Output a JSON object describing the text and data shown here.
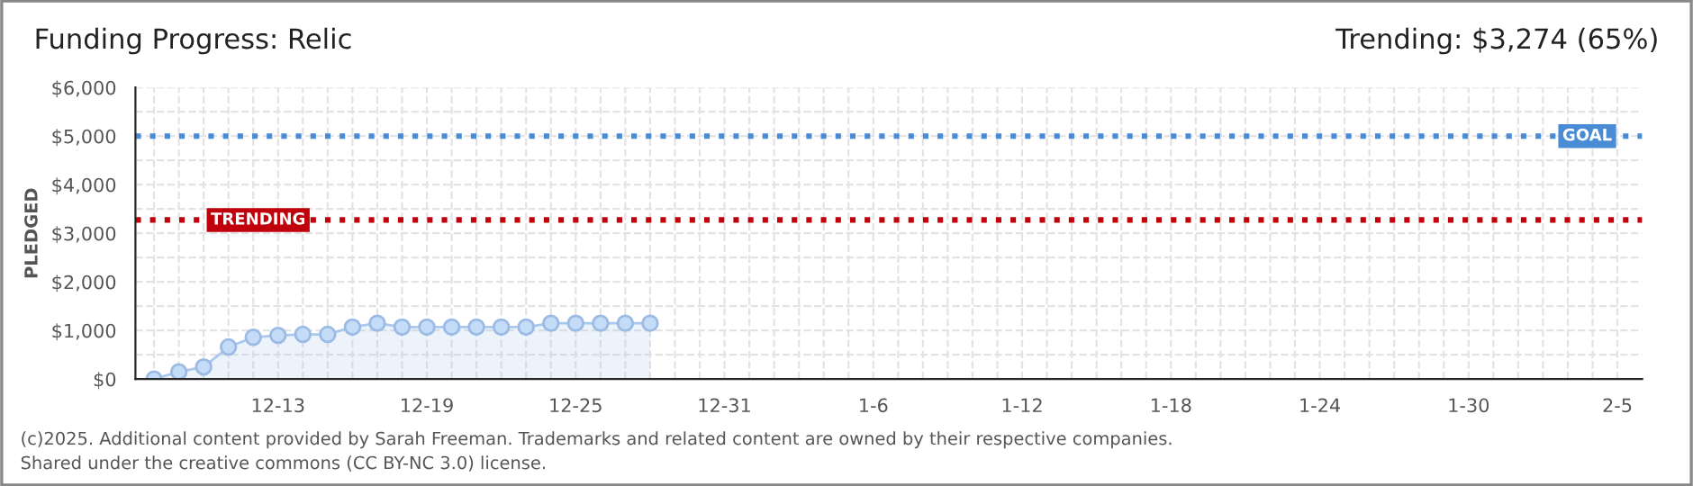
{
  "chart_data": {
    "type": "area",
    "title": "Funding Progress: Relic",
    "subtitle": "Trending: $3,274 (65%)",
    "ylabel": "PLEDGED",
    "x": [
      "2024-12-08",
      "2024-12-09",
      "2024-12-10",
      "2024-12-11",
      "2024-12-12",
      "2024-12-13",
      "2024-12-14",
      "2024-12-15",
      "2024-12-16",
      "2024-12-17",
      "2024-12-18",
      "2024-12-19",
      "2024-12-20",
      "2024-12-21",
      "2024-12-22",
      "2024-12-23",
      "2024-12-24",
      "2024-12-25",
      "2024-12-26",
      "2024-12-27",
      "2024-12-28"
    ],
    "series": [
      {
        "color": "#a9c8ee",
        "values": [
          0,
          150,
          250,
          660,
          860,
          900,
          920,
          920,
          1070,
          1150,
          1070,
          1070,
          1070,
          1070,
          1070,
          1070,
          1150,
          1150,
          1150,
          1150,
          1150
        ]
      }
    ],
    "marker": "circle",
    "grid": true,
    "xlim": [
      "2024-12-07T06:00",
      "2025-02-06"
    ],
    "xticks": [
      {
        "value": "2024-12-08",
        "label": null
      },
      {
        "value": "2024-12-09",
        "label": null
      },
      {
        "value": "2024-12-10",
        "label": null
      },
      {
        "value": "2024-12-11",
        "label": null
      },
      {
        "value": "2024-12-12",
        "label": null
      },
      {
        "value": "2024-12-13",
        "label": "12-13"
      },
      {
        "value": "2024-12-14",
        "label": null
      },
      {
        "value": "2024-12-15",
        "label": null
      },
      {
        "value": "2024-12-16",
        "label": null
      },
      {
        "value": "2024-12-17",
        "label": null
      },
      {
        "value": "2024-12-18",
        "label": null
      },
      {
        "value": "2024-12-19",
        "label": "12-19"
      },
      {
        "value": "2024-12-20",
        "label": null
      },
      {
        "value": "2024-12-21",
        "label": null
      },
      {
        "value": "2024-12-22",
        "label": null
      },
      {
        "value": "2024-12-23",
        "label": null
      },
      {
        "value": "2024-12-24",
        "label": null
      },
      {
        "value": "2024-12-25",
        "label": "12-25"
      },
      {
        "value": "2024-12-26",
        "label": null
      },
      {
        "value": "2024-12-27",
        "label": null
      },
      {
        "value": "2024-12-28",
        "label": null
      },
      {
        "value": "2024-12-29",
        "label": null
      },
      {
        "value": "2024-12-30",
        "label": null
      },
      {
        "value": "2024-12-31",
        "label": "12-31"
      },
      {
        "value": "2025-01-01",
        "label": null
      },
      {
        "value": "2025-01-02",
        "label": null
      },
      {
        "value": "2025-01-03",
        "label": null
      },
      {
        "value": "2025-01-04",
        "label": null
      },
      {
        "value": "2025-01-05",
        "label": null
      },
      {
        "value": "2025-01-06",
        "label": "1-6"
      },
      {
        "value": "2025-01-07",
        "label": null
      },
      {
        "value": "2025-01-08",
        "label": null
      },
      {
        "value": "2025-01-09",
        "label": null
      },
      {
        "value": "2025-01-10",
        "label": null
      },
      {
        "value": "2025-01-11",
        "label": null
      },
      {
        "value": "2025-01-12",
        "label": "1-12"
      },
      {
        "value": "2025-01-13",
        "label": null
      },
      {
        "value": "2025-01-14",
        "label": null
      },
      {
        "value": "2025-01-15",
        "label": null
      },
      {
        "value": "2025-01-16",
        "label": null
      },
      {
        "value": "2025-01-17",
        "label": null
      },
      {
        "value": "2025-01-18",
        "label": "1-18"
      },
      {
        "value": "2025-01-19",
        "label": null
      },
      {
        "value": "2025-01-20",
        "label": null
      },
      {
        "value": "2025-01-21",
        "label": null
      },
      {
        "value": "2025-01-22",
        "label": null
      },
      {
        "value": "2025-01-23",
        "label": null
      },
      {
        "value": "2025-01-24",
        "label": "1-24"
      },
      {
        "value": "2025-01-25",
        "label": null
      },
      {
        "value": "2025-01-26",
        "label": null
      },
      {
        "value": "2025-01-27",
        "label": null
      },
      {
        "value": "2025-01-28",
        "label": null
      },
      {
        "value": "2025-01-29",
        "label": null
      },
      {
        "value": "2025-01-30",
        "label": "1-30"
      },
      {
        "value": "2025-01-31",
        "label": null
      },
      {
        "value": "2025-02-01",
        "label": null
      },
      {
        "value": "2025-02-02",
        "label": null
      },
      {
        "value": "2025-02-03",
        "label": null
      },
      {
        "value": "2025-02-04",
        "label": null
      },
      {
        "value": "2025-02-05",
        "label": "2-5"
      }
    ],
    "ylim": [
      0,
      6000
    ],
    "yticks": [
      {
        "value": 0,
        "label": "$0"
      },
      {
        "value": 500,
        "label": null
      },
      {
        "value": 1000,
        "label": "$1,000"
      },
      {
        "value": 1500,
        "label": null
      },
      {
        "value": 2000,
        "label": "$2,000"
      },
      {
        "value": 2500,
        "label": null
      },
      {
        "value": 3000,
        "label": "$3,000"
      },
      {
        "value": 3500,
        "label": null
      },
      {
        "value": 4000,
        "label": "$4,000"
      },
      {
        "value": 4500,
        "label": null
      },
      {
        "value": 5000,
        "label": "$5,000"
      },
      {
        "value": 5500,
        "label": null
      },
      {
        "value": 6000,
        "label": "$6,000"
      }
    ],
    "ref_lines": [
      {
        "axis": "y",
        "value": 5000,
        "label": "GOAL",
        "color": "#4a8bd6",
        "line_style": "dotted"
      },
      {
        "axis": "y",
        "value": 3274,
        "label": "TRENDING",
        "color": "#c0000a",
        "line_style": "dotted"
      }
    ],
    "annotations": [
      "(c)2025. Additional content provided by Sarah Freeman. Trademarks and related content are owned by their respective companies.",
      "Shared under the creative commons (CC BY-NC 3.0) license."
    ]
  }
}
